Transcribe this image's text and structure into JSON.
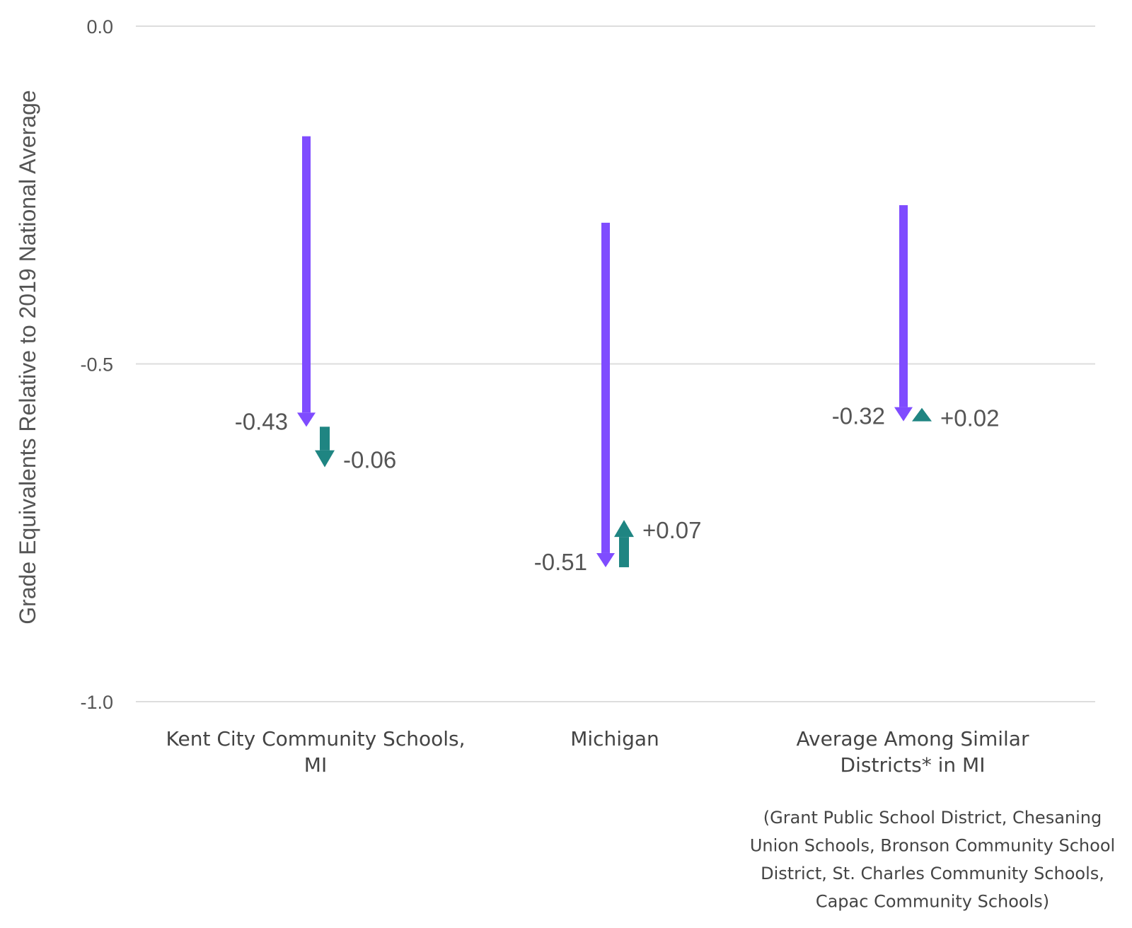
{
  "chart_data": {
    "type": "arrow",
    "ylabel": "Grade Equivalents Relative to 2019 National Average",
    "ylim": [
      -1.0,
      0.0
    ],
    "yticks": [
      {
        "value": 0.0,
        "label": "0.0"
      },
      {
        "value": -0.5,
        "label": "-0.5"
      },
      {
        "value": -1.0,
        "label": "-1.0"
      }
    ],
    "grid": true,
    "colors": {
      "first_change": "#7f4cff",
      "second_change": "#1f8582",
      "grid": "#dddddd"
    },
    "categories": [
      {
        "label_lines": [
          "Kent City Community Schools,",
          "MI"
        ],
        "note_lines": [],
        "first": {
          "start": -0.163,
          "end": -0.593,
          "label": "-0.43"
        },
        "second": {
          "start": -0.593,
          "end": -0.653,
          "label": "-0.06"
        }
      },
      {
        "label_lines": [
          "Michigan"
        ],
        "note_lines": [],
        "first": {
          "start": -0.291,
          "end": -0.801,
          "label": "-0.51"
        },
        "second": {
          "start": -0.801,
          "end": -0.731,
          "label": "+0.07"
        }
      },
      {
        "label_lines": [
          "Average Among Similar",
          "Districts* in MI"
        ],
        "note_lines": [
          "(Grant Public School District, Chesaning",
          "Union Schools, Bronson Community School",
          "District, St. Charles Community Schools,",
          "Capac Community Schools)"
        ],
        "first": {
          "start": -0.265,
          "end": -0.585,
          "label": "-0.32"
        },
        "second": {
          "start": -0.585,
          "end": -0.565,
          "label": "+0.02"
        }
      }
    ]
  }
}
